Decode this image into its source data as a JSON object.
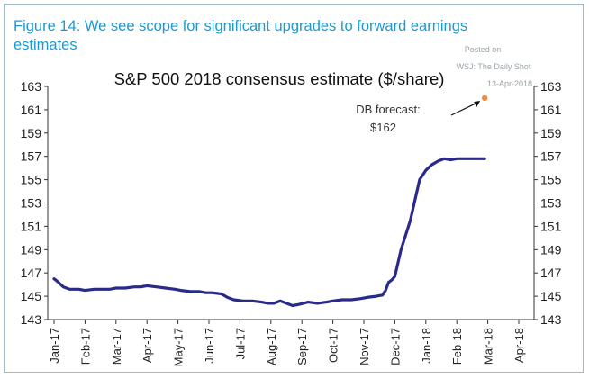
{
  "figure_title": "Figure 14: We see scope for significant upgrades to forward earnings estimates",
  "watermark": {
    "line1": "Posted on",
    "line2": "WSJ: The Daily Shot",
    "line3": "13-Apr-2018"
  },
  "colors": {
    "title": "#1b9ad1",
    "series_line": "#2a2a8a",
    "forecast_point": "#f08a3c",
    "axis": "#333333",
    "border": "#9fb9c9"
  },
  "chart_data": {
    "type": "line",
    "title": "S&P 500 2018 consensus estimate ($/share)",
    "xlabel": "",
    "ylabel": "",
    "ylim": [
      143,
      163
    ],
    "yticks": [
      143,
      145,
      147,
      149,
      151,
      153,
      155,
      157,
      159,
      161,
      163
    ],
    "y_axis_sides": [
      "left",
      "right"
    ],
    "grid": false,
    "x_tick_labels": [
      "Jan-17",
      "Feb-17",
      "Mar-17",
      "Apr-17",
      "May-17",
      "Jun-17",
      "Jul-17",
      "Aug-17",
      "Sep-17",
      "Oct-17",
      "Nov-17",
      "Dec-17",
      "Jan-18",
      "Feb-18",
      "Mar-18",
      "Apr-18"
    ],
    "series": [
      {
        "x": [
          0,
          0.1,
          0.3,
          0.5,
          0.8,
          1.0,
          1.3,
          1.6,
          1.8,
          2.0,
          2.3,
          2.6,
          2.8,
          3.0,
          3.3,
          3.6,
          3.9,
          4.1,
          4.4,
          4.7,
          4.9,
          5.1,
          5.4,
          5.6,
          5.8,
          6.1,
          6.4,
          6.7,
          6.9,
          7.1,
          7.3,
          7.5,
          7.7,
          7.9,
          8.2,
          8.5,
          8.8,
          9.0,
          9.3,
          9.6,
          9.9,
          10.1,
          10.4,
          10.6,
          10.7,
          10.8,
          10.9,
          11.0,
          11.2,
          11.5,
          11.8,
          12.0,
          12.2,
          12.4,
          12.6,
          12.8,
          13.0,
          13.3,
          13.6,
          13.9
        ],
        "values": [
          146.5,
          146.3,
          145.8,
          145.6,
          145.6,
          145.5,
          145.6,
          145.6,
          145.6,
          145.7,
          145.7,
          145.8,
          145.8,
          145.9,
          145.8,
          145.7,
          145.6,
          145.5,
          145.4,
          145.4,
          145.3,
          145.3,
          145.2,
          144.9,
          144.7,
          144.6,
          144.6,
          144.5,
          144.4,
          144.4,
          144.6,
          144.4,
          144.2,
          144.3,
          144.5,
          144.4,
          144.5,
          144.6,
          144.7,
          144.7,
          144.8,
          144.9,
          145.0,
          145.1,
          145.5,
          146.2,
          146.4,
          146.7,
          149.0,
          151.5,
          155.0,
          155.8,
          156.3,
          156.6,
          156.8,
          156.7,
          156.8,
          156.8,
          156.8,
          156.8
        ]
      }
    ],
    "forecast_point": {
      "x": 13.9,
      "value": 162
    },
    "annotations": [
      {
        "line1": "DB forecast:",
        "line2": "$162"
      }
    ]
  }
}
